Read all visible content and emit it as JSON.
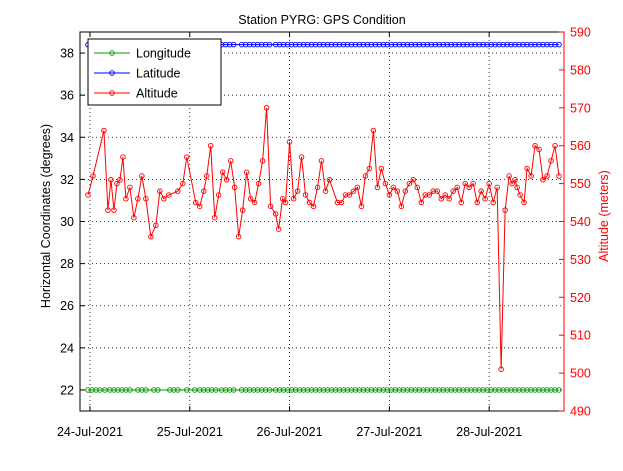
{
  "chart_data": {
    "type": "line",
    "title": "Station PYRG: GPS Condition",
    "ylabel_left": "Horizontal Coordinates (degrees)",
    "ylabel_right": "Altitude (meters)",
    "xlabel": "",
    "x_ticks": [
      "24-Jul-2021",
      "25-Jul-2021",
      "26-Jul-2021",
      "27-Jul-2021",
      "28-Jul-2021"
    ],
    "xlim": [
      -0.1,
      4.75
    ],
    "ylim_left": [
      21,
      39
    ],
    "ylim_right": [
      490,
      590
    ],
    "left_ticks": [
      "22",
      "24",
      "26",
      "28",
      "30",
      "32",
      "34",
      "36",
      "38"
    ],
    "right_ticks": [
      "490",
      "500",
      "510",
      "520",
      "530",
      "540",
      "550",
      "560",
      "570",
      "580",
      "590"
    ],
    "grid": true,
    "legend_position": "top-left",
    "colors": {
      "longitude": "#009900",
      "latitude": "#0000ff",
      "altitude": "#ff0000",
      "right_axis": "#ff0000",
      "axes": "#000000"
    },
    "series": [
      {
        "name": "Longitude",
        "axis": "left",
        "constant": 22.0,
        "x": [
          -0.02,
          0.02,
          0.06,
          0.1,
          0.15,
          0.2,
          0.24,
          0.28,
          0.32,
          0.36,
          0.4,
          0.48,
          0.52,
          0.56,
          0.64,
          0.68,
          0.8,
          0.84,
          0.88,
          0.97,
          1.05,
          1.1,
          1.14,
          1.18,
          1.22,
          1.26,
          1.32,
          1.36,
          1.4,
          1.44,
          1.52,
          1.56,
          1.6,
          1.64,
          1.68,
          1.72,
          1.76,
          1.8,
          1.86,
          1.9,
          1.94,
          1.98,
          2.02,
          2.06,
          2.1,
          2.14,
          2.18,
          2.22,
          2.26,
          2.3,
          2.34,
          2.38,
          2.42,
          2.46,
          2.5,
          2.54,
          2.58,
          2.62,
          2.66,
          2.7,
          2.74,
          2.78,
          2.82,
          2.86,
          2.9,
          2.94,
          2.98,
          3.02,
          3.06,
          3.1,
          3.14,
          3.18,
          3.22,
          3.26,
          3.3,
          3.34,
          3.38,
          3.42,
          3.46,
          3.5,
          3.54,
          3.58,
          3.62,
          3.66,
          3.7,
          3.74,
          3.78,
          3.82,
          3.86,
          3.9,
          3.94,
          3.98,
          4.02,
          4.06,
          4.1,
          4.14,
          4.18,
          4.22,
          4.26,
          4.3,
          4.34,
          4.38,
          4.42,
          4.46,
          4.5,
          4.54,
          4.58,
          4.62,
          4.66,
          4.7
        ]
      },
      {
        "name": "Latitude",
        "axis": "left",
        "constant": 38.4,
        "x": [
          -0.02,
          0.02,
          0.06,
          0.1,
          0.15,
          0.2,
          0.24,
          0.28,
          0.32,
          0.36,
          0.4,
          0.48,
          0.52,
          0.56,
          0.64,
          0.68,
          0.8,
          0.84,
          0.88,
          0.97,
          1.05,
          1.1,
          1.14,
          1.18,
          1.22,
          1.26,
          1.32,
          1.36,
          1.4,
          1.44,
          1.52,
          1.56,
          1.6,
          1.64,
          1.68,
          1.72,
          1.76,
          1.8,
          1.86,
          1.9,
          1.94,
          1.98,
          2.02,
          2.06,
          2.1,
          2.14,
          2.18,
          2.22,
          2.26,
          2.3,
          2.34,
          2.38,
          2.42,
          2.46,
          2.5,
          2.54,
          2.58,
          2.62,
          2.66,
          2.7,
          2.74,
          2.78,
          2.82,
          2.86,
          2.9,
          2.94,
          2.98,
          3.02,
          3.06,
          3.1,
          3.14,
          3.18,
          3.22,
          3.26,
          3.3,
          3.34,
          3.38,
          3.42,
          3.46,
          3.5,
          3.54,
          3.58,
          3.62,
          3.66,
          3.7,
          3.74,
          3.78,
          3.82,
          3.86,
          3.9,
          3.94,
          3.98,
          4.02,
          4.06,
          4.1,
          4.14,
          4.18,
          4.22,
          4.26,
          4.3,
          4.34,
          4.38,
          4.42,
          4.46,
          4.5,
          4.54,
          4.58,
          4.62,
          4.66,
          4.7
        ]
      },
      {
        "name": "Altitude",
        "axis": "right",
        "x": [
          -0.02,
          0.03,
          0.14,
          0.18,
          0.21,
          0.24,
          0.27,
          0.3,
          0.33,
          0.36,
          0.4,
          0.44,
          0.48,
          0.52,
          0.56,
          0.61,
          0.66,
          0.7,
          0.74,
          0.79,
          0.88,
          0.93,
          0.97,
          1.06,
          1.1,
          1.14,
          1.17,
          1.21,
          1.25,
          1.29,
          1.33,
          1.37,
          1.41,
          1.45,
          1.49,
          1.53,
          1.57,
          1.61,
          1.65,
          1.69,
          1.73,
          1.77,
          1.81,
          1.86,
          1.89,
          1.93,
          1.96,
          2.0,
          2.04,
          2.08,
          2.12,
          2.16,
          2.2,
          2.24,
          2.28,
          2.32,
          2.36,
          2.4,
          2.48,
          2.52,
          2.56,
          2.6,
          2.64,
          2.68,
          2.72,
          2.76,
          2.8,
          2.84,
          2.88,
          2.92,
          2.96,
          3.0,
          3.04,
          3.08,
          3.12,
          3.16,
          3.2,
          3.24,
          3.28,
          3.32,
          3.36,
          3.4,
          3.44,
          3.48,
          3.52,
          3.56,
          3.6,
          3.64,
          3.68,
          3.72,
          3.76,
          3.8,
          3.84,
          3.88,
          3.92,
          3.96,
          4.0,
          4.04,
          4.08,
          4.12,
          4.16,
          4.2,
          4.23,
          4.26,
          4.28,
          4.31,
          4.35,
          4.38,
          4.42,
          4.46,
          4.5,
          4.54,
          4.58,
          4.62,
          4.66,
          4.7
        ],
        "values": [
          547,
          552,
          564,
          543,
          551,
          543,
          550,
          551,
          557,
          546,
          549,
          541,
          546,
          552,
          546,
          536,
          539,
          548,
          546,
          547,
          548,
          550,
          557,
          545,
          544,
          548,
          552,
          560,
          541,
          547,
          553,
          551,
          556,
          549,
          536,
          543,
          553,
          546,
          545,
          550,
          556,
          570,
          544,
          542,
          538,
          546,
          545,
          561,
          546,
          548,
          557,
          547,
          545,
          544,
          549,
          556,
          548,
          551,
          545,
          545,
          547,
          547,
          548,
          549,
          544,
          552,
          554,
          564,
          549,
          554,
          550,
          547,
          549,
          548,
          544,
          548,
          550,
          551,
          549,
          545,
          547,
          547,
          548,
          548,
          546,
          547,
          546,
          548,
          549,
          545,
          550,
          549,
          550,
          545,
          548,
          546,
          550,
          545,
          549,
          501,
          543,
          552,
          550,
          551,
          549,
          547,
          545,
          554,
          552,
          560,
          559,
          551,
          552,
          556,
          560,
          552
        ]
      }
    ]
  }
}
